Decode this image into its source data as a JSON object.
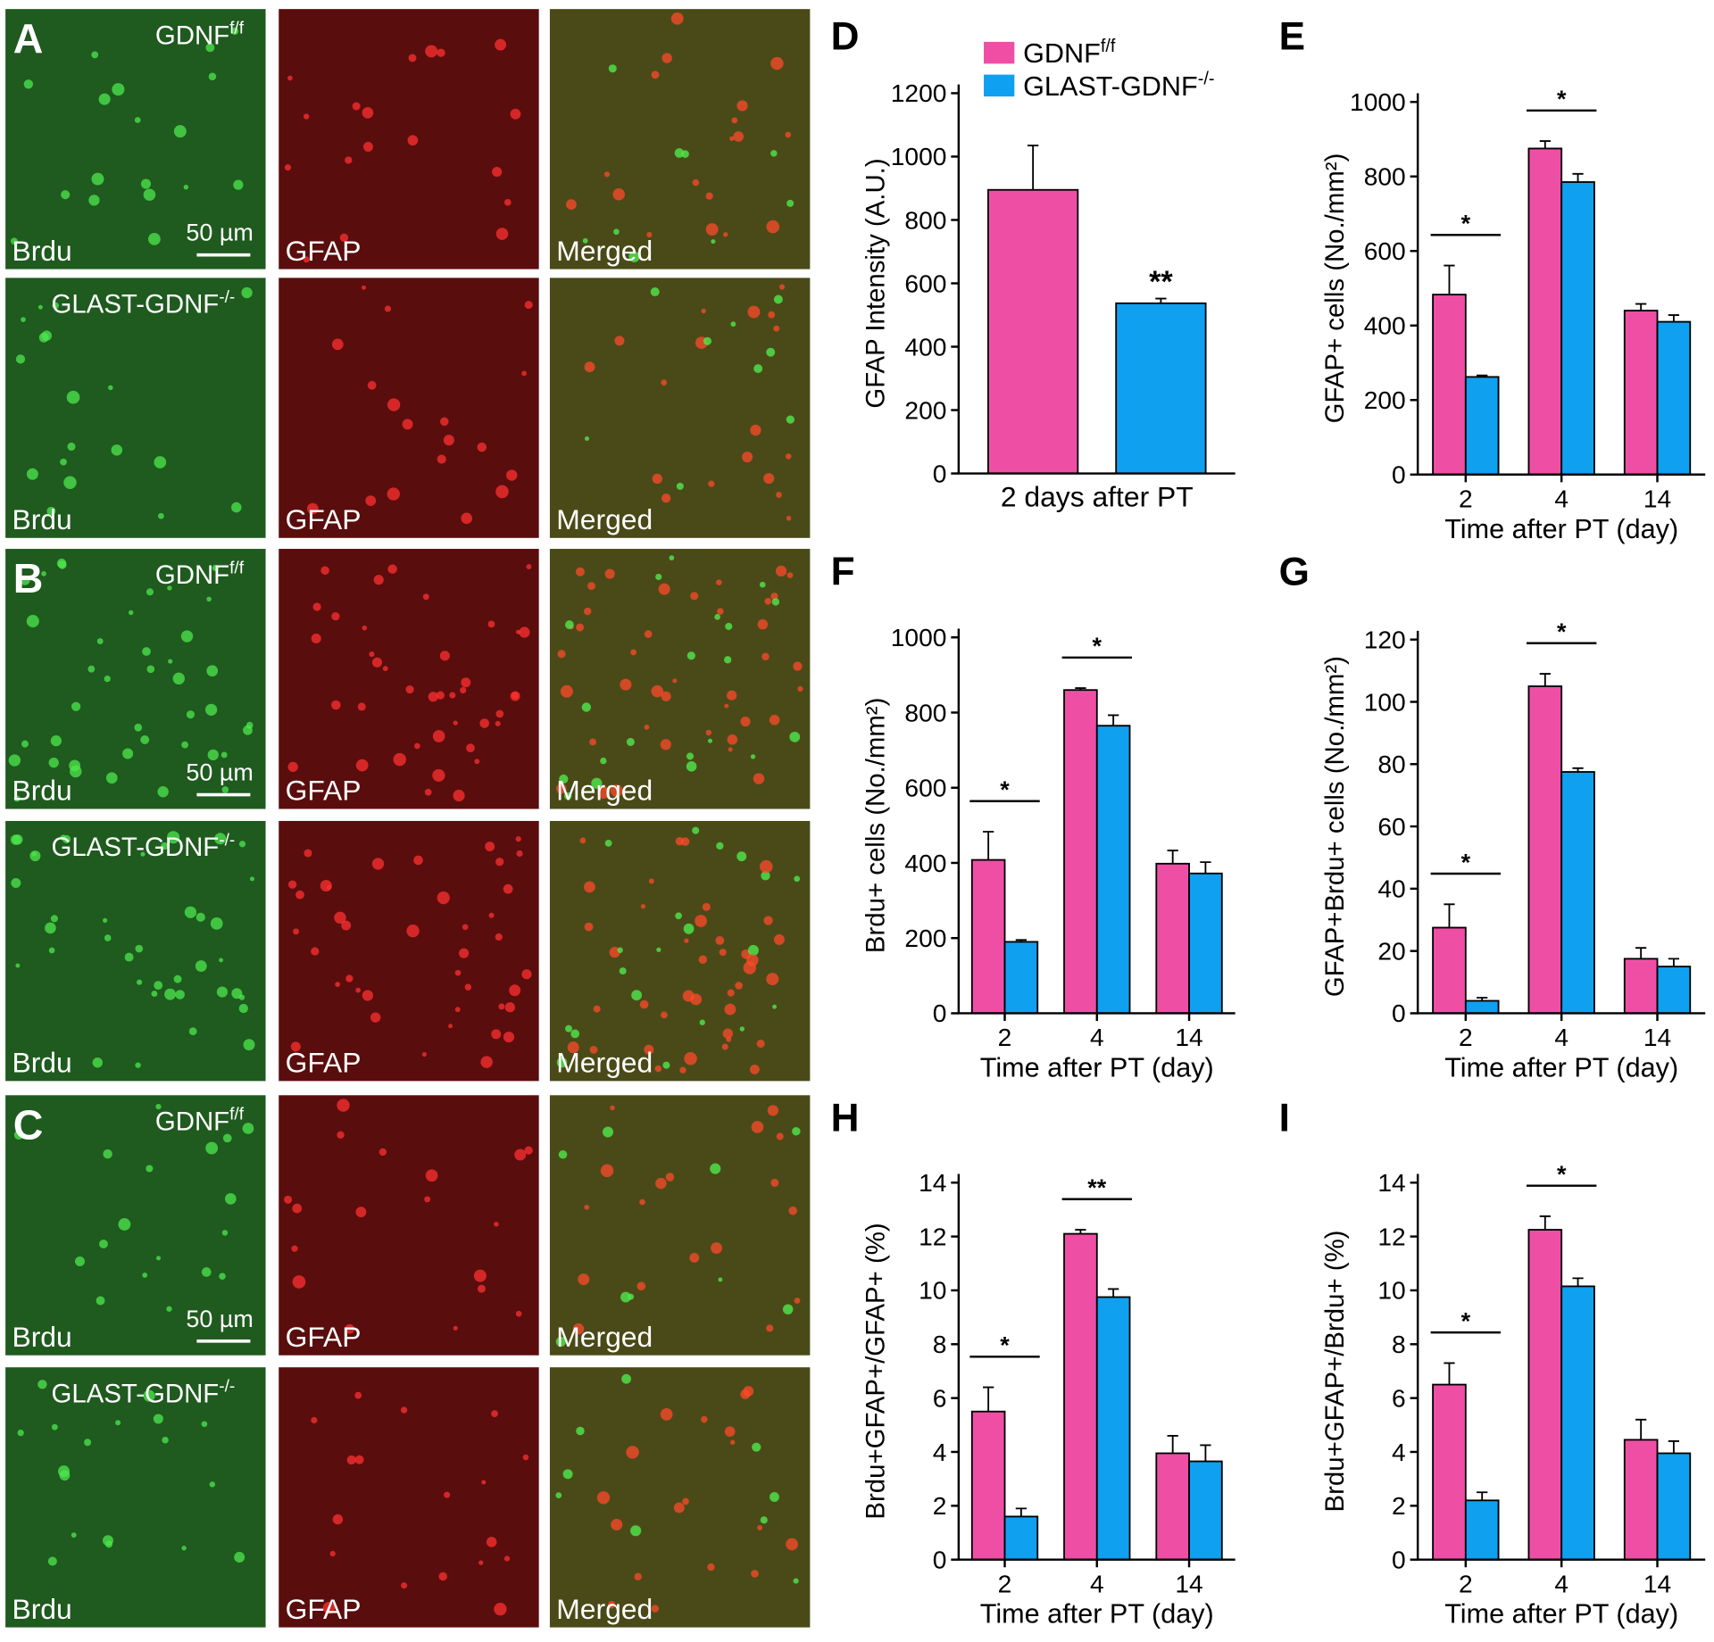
{
  "image_panels": {
    "letters": [
      "A",
      "B",
      "C"
    ],
    "genotypes": [
      {
        "text": "GDNF",
        "sup": "f/f"
      },
      {
        "text": "GLAST-GDNF",
        "sup": "-/-"
      }
    ],
    "channels": [
      "Brdu",
      "GFAP",
      "Merged"
    ],
    "scale_bar": "50 µm"
  },
  "chart_data": [
    {
      "type": "bar",
      "label": "D",
      "ylabel": "GFAP Intensity (A.U.)",
      "categories": [
        "2 days after PT"
      ],
      "ylim": [
        0,
        1200
      ],
      "yticks": [
        0,
        200,
        400,
        600,
        800,
        1000,
        1200
      ],
      "series": [
        {
          "name": "GDNF",
          "name_sup": "f/f",
          "color": "#ee4fa5",
          "values": [
            895
          ],
          "errors": [
            140
          ]
        },
        {
          "name": "GLAST-GDNF",
          "name_sup": "-/-",
          "color": "#0fa0f0",
          "values": [
            537
          ],
          "errors": [
            15
          ]
        }
      ],
      "annotations": [
        {
          "text": "**",
          "category": "2 days after PT"
        }
      ]
    },
    {
      "type": "bar",
      "label": "E",
      "ylabel": "GFAP+ cells (No./mm²)",
      "xlabel": "Time after PT (day)",
      "categories": [
        "2",
        "4",
        "14"
      ],
      "ylim": [
        0,
        1000
      ],
      "yticks": [
        0,
        200,
        400,
        600,
        800,
        1000
      ],
      "series": [
        {
          "color": "#ee4fa5",
          "values": [
            483,
            875,
            440
          ],
          "errors": [
            78,
            20,
            18
          ]
        },
        {
          "color": "#0fa0f0",
          "values": [
            262,
            785,
            410
          ],
          "errors": [
            4,
            22,
            18
          ]
        }
      ],
      "annotations": [
        {
          "text": "*",
          "category": "2"
        },
        {
          "text": "*",
          "category": "4"
        }
      ]
    },
    {
      "type": "bar",
      "label": "F",
      "ylabel": "Brdu+ cells (No./mm²)",
      "xlabel": "Time after PT (day)",
      "categories": [
        "2",
        "4",
        "14"
      ],
      "ylim": [
        0,
        1000
      ],
      "yticks": [
        0,
        200,
        400,
        600,
        800,
        1000
      ],
      "series": [
        {
          "color": "#ee4fa5",
          "values": [
            408,
            860,
            398
          ],
          "errors": [
            75,
            5,
            35
          ]
        },
        {
          "color": "#0fa0f0",
          "values": [
            190,
            765,
            372
          ],
          "errors": [
            5,
            28,
            30
          ]
        }
      ],
      "annotations": [
        {
          "text": "*",
          "category": "2"
        },
        {
          "text": "*",
          "category": "4"
        }
      ]
    },
    {
      "type": "bar",
      "label": "G",
      "ylabel": "GFAP+Brdu+ cells (No./mm²)",
      "xlabel": "Time after PT (day)",
      "categories": [
        "2",
        "4",
        "14"
      ],
      "ylim": [
        0,
        120
      ],
      "yticks": [
        0,
        20,
        40,
        60,
        80,
        100,
        120
      ],
      "series": [
        {
          "color": "#ee4fa5",
          "values": [
            27.5,
            105,
            17.5
          ],
          "errors": [
            7.5,
            4,
            3.5
          ]
        },
        {
          "color": "#0fa0f0",
          "values": [
            4,
            77.5,
            15
          ],
          "errors": [
            1,
            1.2,
            2.5
          ]
        }
      ],
      "annotations": [
        {
          "text": "*",
          "category": "2"
        },
        {
          "text": "*",
          "category": "4"
        }
      ]
    },
    {
      "type": "bar",
      "label": "H",
      "ylabel": "Brdu+GFAP+/GFAP+ (%)",
      "xlabel": "Time after PT (day)",
      "categories": [
        "2",
        "4",
        "14"
      ],
      "ylim": [
        0,
        14
      ],
      "yticks": [
        0,
        2,
        4,
        6,
        8,
        10,
        12,
        14
      ],
      "series": [
        {
          "color": "#ee4fa5",
          "values": [
            5.5,
            12.1,
            3.95
          ],
          "errors": [
            0.9,
            0.15,
            0.65
          ]
        },
        {
          "color": "#0fa0f0",
          "values": [
            1.6,
            9.75,
            3.65
          ],
          "errors": [
            0.3,
            0.3,
            0.6
          ]
        }
      ],
      "annotations": [
        {
          "text": "*",
          "category": "2"
        },
        {
          "text": "**",
          "category": "4"
        }
      ]
    },
    {
      "type": "bar",
      "label": "I",
      "ylabel": "Brdu+GFAP+/Brdu+ (%)",
      "xlabel": "Time after PT (day)",
      "categories": [
        "2",
        "4",
        "14"
      ],
      "ylim": [
        0,
        14
      ],
      "yticks": [
        0,
        2,
        4,
        6,
        8,
        10,
        12,
        14
      ],
      "series": [
        {
          "color": "#ee4fa5",
          "values": [
            6.5,
            12.25,
            4.45
          ],
          "errors": [
            0.8,
            0.5,
            0.75
          ]
        },
        {
          "color": "#0fa0f0",
          "values": [
            2.2,
            10.15,
            3.95
          ],
          "errors": [
            0.3,
            0.3,
            0.45
          ]
        }
      ],
      "annotations": [
        {
          "text": "*",
          "category": "2"
        },
        {
          "text": "*",
          "category": "4"
        }
      ]
    }
  ]
}
